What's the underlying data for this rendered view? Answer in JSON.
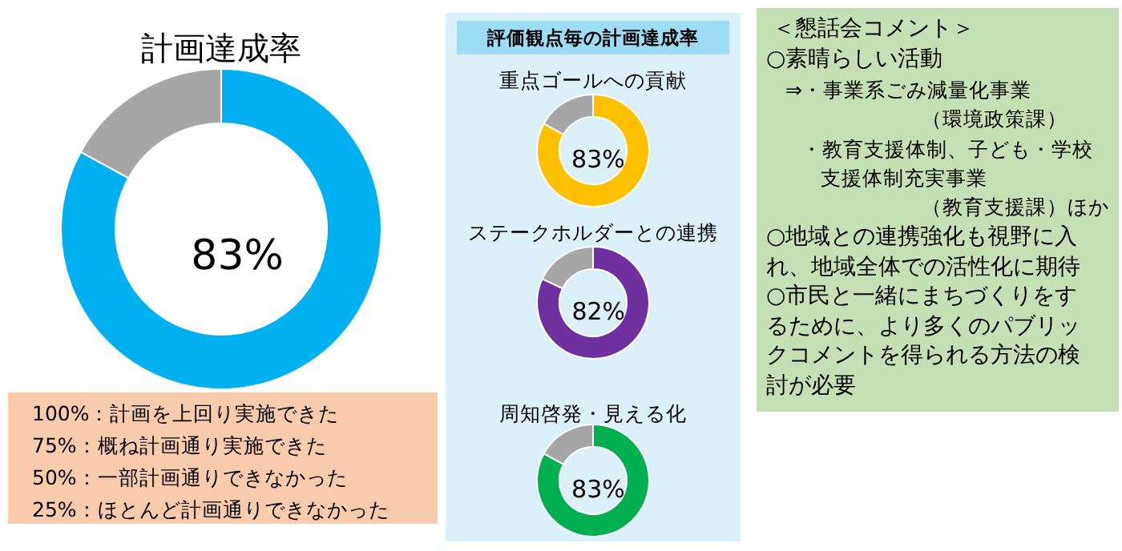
{
  "chart_data": [
    {
      "type": "donut",
      "title": "計画達成率",
      "categories": [
        null,
        null
      ],
      "values": [
        83,
        17
      ],
      "colors": [
        "#00b0f0",
        "#a6a6a6"
      ],
      "value_labels": [
        "83%",
        null
      ],
      "annotations": [
        "100%：計画を上回り実施できた",
        "75%：概ね計画通り実施できた",
        "50%：一部計画通りできなかった",
        "25%：ほとんど計画通りできなかった"
      ]
    },
    {
      "type": "other",
      "title": "評価観点毎の計画達成率"
    },
    {
      "type": "donut",
      "title": "重点ゴールへの貢献",
      "categories": [
        null,
        null
      ],
      "values": [
        83,
        17
      ],
      "colors": [
        "#ffc000",
        "#a6a6a6"
      ],
      "value_labels": [
        "83%",
        null
      ]
    },
    {
      "type": "donut",
      "title": "ステークホルダーとの連携",
      "categories": [
        null,
        null
      ],
      "values": [
        82,
        18
      ],
      "colors": [
        "#7030a0",
        "#a6a6a6"
      ],
      "value_labels": [
        "82%",
        null
      ]
    },
    {
      "type": "donut",
      "title": "周知啓発・見える化",
      "categories": [
        null,
        null
      ],
      "values": [
        83,
        17
      ],
      "colors": [
        "#00b050",
        "#a6a6a6"
      ],
      "value_labels": [
        "83%",
        null
      ]
    },
    {
      "type": "other",
      "title": "＜懇話会コメント＞",
      "annotations": [
        "○素晴らしい活動",
        "⇒・事業系ごみ減量化事業",
        "（環境政策課）",
        "・教育支援体制、子ども・学校",
        "支援体制充実事業",
        "（教育支援課）ほか",
        "○地域との連携強化も視野に入",
        "れ、地域全体での活性化に期待",
        "○市民と一緒にまちづくりをす",
        "るために、より多くのパブリッ",
        "クコメントを得られる方法の検",
        "討が必要"
      ]
    }
  ]
}
